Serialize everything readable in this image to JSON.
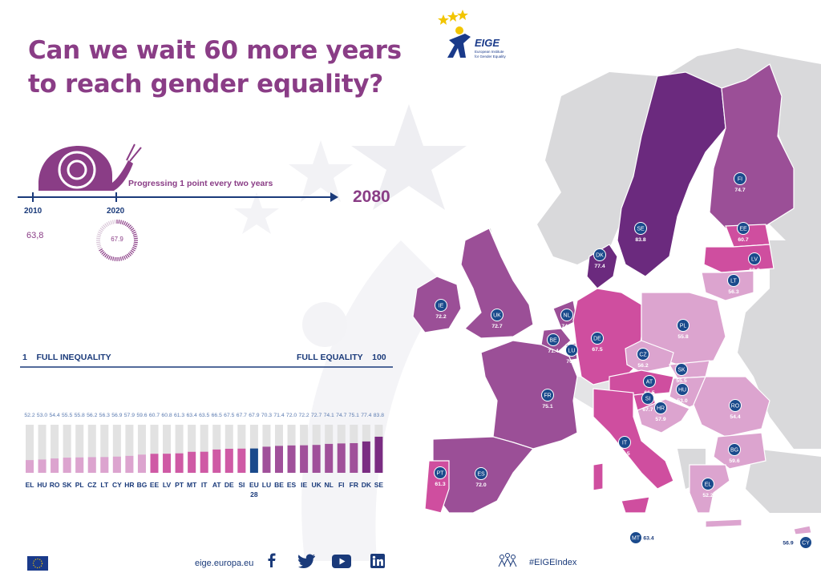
{
  "title": {
    "line1": "Can we wait 60 more years",
    "line2": "to reach gender equality?"
  },
  "logo": {
    "name": "EIGE",
    "subtitle": "European Institute for Gender Equality"
  },
  "timeline": {
    "progress_label": "Progressing 1 point every two years",
    "start_year": "2010",
    "current_year": "2020",
    "target_year": "2080",
    "start_value": "63,8",
    "current_value": "67.9",
    "current_fraction": 0.679
  },
  "scale": {
    "left_label": "1    FULL INEQUALITY",
    "right_label": "FULL EQUALITY    100",
    "min": 1,
    "max": 100
  },
  "colors": {
    "title": "#8a3d86",
    "navy": "#1a3a7a",
    "eu": "#1a4a8c",
    "grey_bar": "#e2e2e2",
    "shades": [
      "#dca4cf",
      "#cf5aa5",
      "#a0509a",
      "#7a2c82"
    ]
  },
  "chart_data": {
    "type": "bar",
    "categories": [
      "EL",
      "HU",
      "RO",
      "SK",
      "PL",
      "CZ",
      "LT",
      "CY",
      "HR",
      "BG",
      "EE",
      "LV",
      "PT",
      "MT",
      "IT",
      "AT",
      "DE",
      "SI",
      "EU\n28",
      "LU",
      "BE",
      "ES",
      "IE",
      "UK",
      "NL",
      "FI",
      "FR",
      "DK",
      "SE"
    ],
    "values": [
      52.2,
      53.0,
      54.4,
      55.5,
      55.8,
      56.2,
      56.3,
      56.9,
      57.9,
      59.6,
      60.7,
      60.8,
      61.3,
      63.4,
      63.5,
      66.5,
      67.5,
      67.7,
      67.9,
      70.3,
      71.4,
      72.0,
      72.2,
      72.7,
      74.1,
      74.7,
      75.1,
      77.4,
      83.8
    ],
    "value_labels": [
      "52.2",
      "53.0",
      "54.4",
      "55.5",
      "55.8",
      "56.2",
      "56.3",
      "56.9",
      "57.9",
      "59.6",
      "60.7",
      "60.8",
      "61.3",
      "63.4",
      "63.5",
      "66.5",
      "67.5",
      "67.7",
      "67.9",
      "70.3",
      "71.4",
      "72.0",
      "72.2",
      "72.7",
      "74.1",
      "74.7",
      "75.1",
      "77.4",
      "83.8"
    ],
    "ylim": [
      0,
      100
    ]
  },
  "map": {
    "countries": [
      {
        "code": "FI",
        "value": "74.7"
      },
      {
        "code": "SE",
        "value": "83.8"
      },
      {
        "code": "EE",
        "value": "60.7"
      },
      {
        "code": "LV",
        "value": "60.8"
      },
      {
        "code": "LT",
        "value": "56.3"
      },
      {
        "code": "DK",
        "value": "77.4"
      },
      {
        "code": "IE",
        "value": "72.2"
      },
      {
        "code": "UK",
        "value": "72.7"
      },
      {
        "code": "NL",
        "value": "74.1"
      },
      {
        "code": "BE",
        "value": "71.4"
      },
      {
        "code": "LU",
        "value": "70.3"
      },
      {
        "code": "DE",
        "value": "67.5"
      },
      {
        "code": "PL",
        "value": "55.8"
      },
      {
        "code": "CZ",
        "value": "56.2"
      },
      {
        "code": "SK",
        "value": "55.5"
      },
      {
        "code": "AT",
        "value": "66.5"
      },
      {
        "code": "HU",
        "value": "53.0"
      },
      {
        "code": "SI",
        "value": "67.7"
      },
      {
        "code": "HR",
        "value": "57.9"
      },
      {
        "code": "RO",
        "value": "54.4"
      },
      {
        "code": "BG",
        "value": "59.6"
      },
      {
        "code": "FR",
        "value": "75.1"
      },
      {
        "code": "ES",
        "value": "72.0"
      },
      {
        "code": "PT",
        "value": "61.3"
      },
      {
        "code": "IT",
        "value": "63.5"
      },
      {
        "code": "EL",
        "value": "52.2"
      },
      {
        "code": "MT",
        "value": "63.4"
      },
      {
        "code": "CY",
        "value": "56.9"
      }
    ]
  },
  "footer": {
    "website": "eige.europa.eu",
    "hashtag": "#EIGEIndex",
    "icons": [
      "eu-flag-icon",
      "facebook-icon",
      "twitter-icon",
      "youtube-icon",
      "linkedin-icon",
      "people-stars-icon"
    ]
  }
}
